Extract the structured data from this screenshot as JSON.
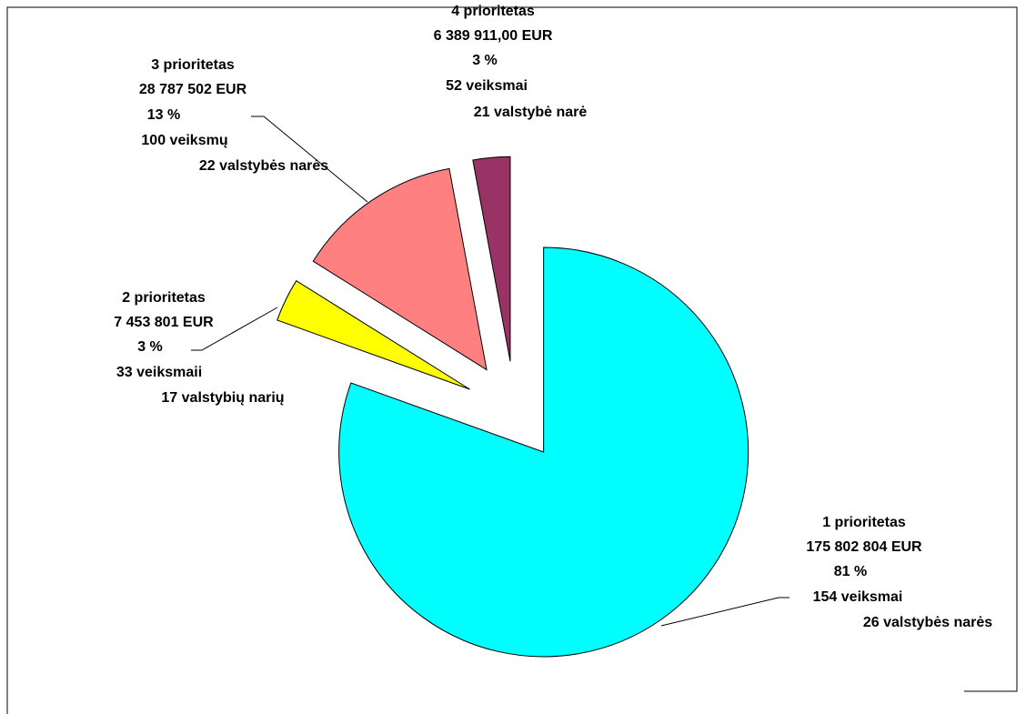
{
  "chart_data": {
    "type": "pie",
    "categories": [
      "1 prioritetas",
      "2 prioritetas",
      "3 prioritetas",
      "4 prioritetas"
    ],
    "values": [
      175802804,
      7453801,
      28787502,
      6389911.0
    ],
    "value_labels": [
      "175 802 804 EUR",
      "7 453 801 EUR",
      "28 787 502 EUR",
      "6 389 911,00 EUR"
    ],
    "percent_labels": [
      "81 %",
      "3 %",
      "13 %",
      "3 %"
    ],
    "actions": [
      "154 veiksmai",
      "33 veiksmaii",
      "100 veiksmų",
      "52 veiksmai"
    ],
    "member_states": [
      "26 valstybės narės",
      "17 valstybių narių",
      "22 valstybės narės",
      "21 valstybė narė"
    ],
    "colors": [
      "#00ffff",
      "#ffff00",
      "#ff8080",
      "#993366"
    ]
  }
}
